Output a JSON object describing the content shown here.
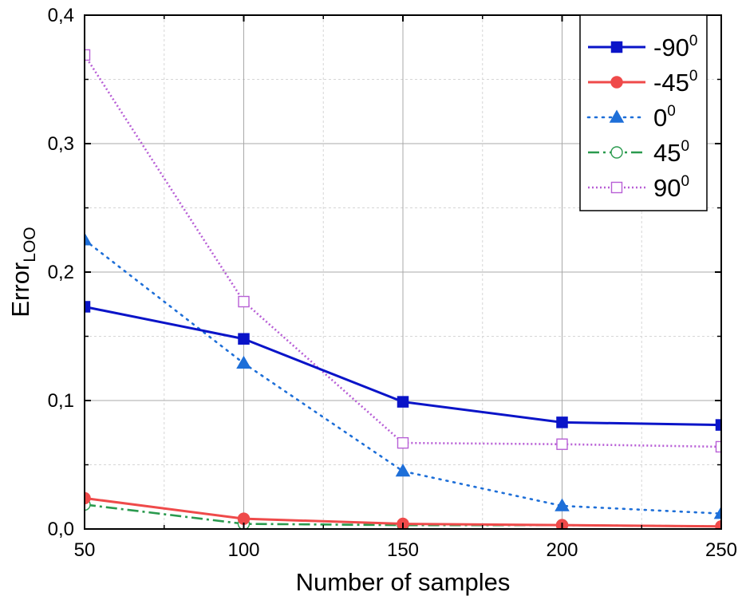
{
  "chart_data": {
    "type": "line",
    "title": "",
    "xlabel": "Number of samples",
    "ylabel": "Error",
    "ylabel_subscript": "LOO",
    "x": [
      50,
      100,
      150,
      200,
      250
    ],
    "xlim": [
      50,
      250
    ],
    "ylim": [
      0,
      0.4
    ],
    "xticks": [
      {
        "value": 50,
        "label": "50"
      },
      {
        "value": 100,
        "label": "100"
      },
      {
        "value": 150,
        "label": "150"
      },
      {
        "value": 200,
        "label": "200"
      },
      {
        "value": 250,
        "label": "250"
      }
    ],
    "yticks": [
      {
        "value": 0.0,
        "label": "0,0"
      },
      {
        "value": 0.1,
        "label": "0,1"
      },
      {
        "value": 0.2,
        "label": "0,2"
      },
      {
        "value": 0.3,
        "label": "0,3"
      },
      {
        "value": 0.4,
        "label": "0,4"
      }
    ],
    "grid": true,
    "legend_position": "top-right",
    "series": [
      {
        "name": "-90",
        "sup": "0",
        "color": "#0a14c8",
        "line": "solid",
        "marker": "square",
        "filled": true,
        "values": [
          0.173,
          0.148,
          0.099,
          0.083,
          0.081
        ]
      },
      {
        "name": "-45",
        "sup": "0",
        "color": "#ef4a4a",
        "line": "solid",
        "marker": "circle",
        "filled": true,
        "values": [
          0.024,
          0.008,
          0.004,
          0.003,
          0.002
        ]
      },
      {
        "name": "0",
        "sup": "0",
        "color": "#1e6fd8",
        "line": "dotted",
        "marker": "triangle",
        "filled": true,
        "values": [
          0.225,
          0.129,
          0.045,
          0.018,
          0.012
        ]
      },
      {
        "name": "45",
        "sup": "0",
        "color": "#2a9a4e",
        "line": "dashdot",
        "marker": "circle",
        "filled": false,
        "values": [
          0.019,
          0.004,
          0.003,
          0.003,
          0.002
        ]
      },
      {
        "name": "90",
        "sup": "0",
        "color": "#b85fd6",
        "line": "dot",
        "marker": "square",
        "filled": false,
        "values": [
          0.369,
          0.177,
          0.067,
          0.066,
          0.064
        ]
      }
    ]
  }
}
